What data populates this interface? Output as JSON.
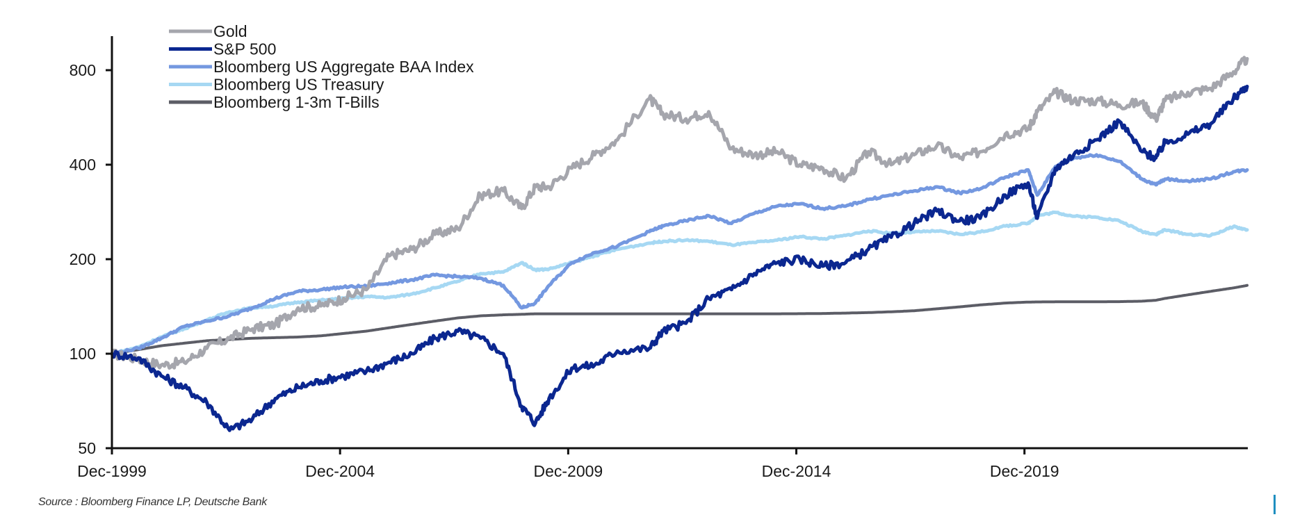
{
  "source_note": "Source : Bloomberg Finance LP, Deutsche Bank",
  "chart_data": {
    "type": "line",
    "title": "",
    "xlabel": "",
    "ylabel": "",
    "y_scale": "log2",
    "ylim": [
      50,
      1000
    ],
    "y_ticks": [
      50,
      100,
      200,
      400,
      800
    ],
    "y_tick_labels": [
      "50",
      "100",
      "200",
      "400",
      "800"
    ],
    "xlim": [
      1999.92,
      2024.8
    ],
    "x_ticks": [
      1999.92,
      2004.92,
      2009.92,
      2014.92,
      2019.92
    ],
    "x_tick_labels": [
      "Dec-1999",
      "Dec-2004",
      "Dec-2009",
      "Dec-2014",
      "Dec-2019"
    ],
    "grid": false,
    "legend_position": "top-left",
    "x": [
      1999.92,
      2000.5,
      2001.0,
      2001.5,
      2002.0,
      2002.5,
      2003.0,
      2003.5,
      2004.0,
      2004.5,
      2005.0,
      2005.5,
      2006.0,
      2006.5,
      2007.0,
      2007.5,
      2008.0,
      2008.5,
      2008.9,
      2009.2,
      2009.5,
      2010.0,
      2010.5,
      2011.0,
      2011.7,
      2012.0,
      2012.5,
      2013.0,
      2013.5,
      2014.0,
      2014.5,
      2015.0,
      2015.5,
      2016.0,
      2016.5,
      2017.0,
      2017.5,
      2018.0,
      2018.5,
      2018.95,
      2019.5,
      2020.0,
      2020.2,
      2020.6,
      2021.0,
      2021.5,
      2022.0,
      2022.5,
      2022.8,
      2023.0,
      2023.5,
      2024.0,
      2024.5,
      2024.8
    ],
    "series": [
      {
        "name": "Gold",
        "color": "#a5a6ad",
        "values": [
          100,
          96,
          92,
          94,
          104,
          112,
          120,
          124,
          140,
          142,
          150,
          160,
          205,
          215,
          240,
          250,
          320,
          330,
          290,
          340,
          340,
          390,
          430,
          480,
          650,
          580,
          560,
          590,
          450,
          430,
          440,
          400,
          390,
          360,
          440,
          400,
          430,
          460,
          420,
          440,
          500,
          520,
          590,
          680,
          640,
          640,
          620,
          630,
          560,
          640,
          680,
          700,
          790,
          870
        ]
      },
      {
        "name": "S&P 500",
        "color": "#0b2790",
        "values": [
          100,
          97,
          85,
          78,
          70,
          57,
          62,
          72,
          78,
          82,
          85,
          88,
          94,
          100,
          112,
          118,
          112,
          100,
          68,
          60,
          72,
          90,
          92,
          102,
          104,
          118,
          125,
          150,
          160,
          180,
          195,
          200,
          190,
          195,
          215,
          235,
          260,
          285,
          265,
          270,
          320,
          350,
          270,
          390,
          430,
          480,
          550,
          440,
          420,
          470,
          500,
          540,
          650,
          710
        ]
      },
      {
        "name": "Bloomberg US Aggregate BAA Index",
        "color": "#7498e0",
        "values": [
          100,
          104,
          112,
          122,
          127,
          132,
          140,
          150,
          158,
          160,
          163,
          164,
          168,
          172,
          178,
          176,
          174,
          165,
          140,
          145,
          165,
          195,
          210,
          220,
          245,
          255,
          265,
          275,
          260,
          280,
          295,
          300,
          290,
          295,
          310,
          320,
          330,
          340,
          325,
          335,
          365,
          385,
          320,
          395,
          420,
          430,
          410,
          360,
          345,
          360,
          355,
          360,
          380,
          385
        ]
      },
      {
        "name": "Bloomberg US Treasury",
        "color": "#a6d8f3",
        "values": [
          100,
          105,
          113,
          120,
          128,
          136,
          140,
          142,
          146,
          148,
          150,
          152,
          151,
          155,
          162,
          170,
          180,
          182,
          195,
          185,
          186,
          195,
          205,
          215,
          225,
          228,
          230,
          228,
          222,
          226,
          230,
          236,
          232,
          238,
          246,
          242,
          244,
          246,
          240,
          244,
          255,
          260,
          275,
          282,
          274,
          272,
          265,
          245,
          240,
          248,
          240,
          238,
          254,
          248
        ]
      },
      {
        "name": "Bloomberg 1-3m T-Bills",
        "color": "#5c5d66",
        "values": [
          100,
          103,
          106,
          108,
          110,
          111,
          112,
          112.5,
          113,
          114,
          116,
          118,
          121,
          124,
          127,
          130,
          132,
          133,
          133.5,
          134,
          134,
          134,
          134,
          134,
          134,
          134,
          134,
          134,
          134,
          134,
          134,
          134.1,
          134.3,
          134.7,
          135.2,
          136,
          137,
          139,
          141,
          143,
          145,
          146,
          146.2,
          146.3,
          146.3,
          146.4,
          146.5,
          147,
          148,
          150,
          154,
          158,
          162,
          165
        ]
      }
    ]
  }
}
